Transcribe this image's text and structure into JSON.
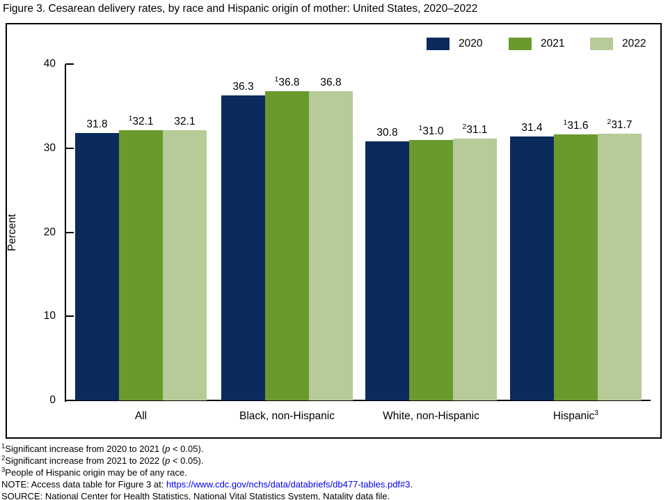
{
  "title": "Figure 3. Cesarean delivery rates, by race and Hispanic origin of mother: United States, 2020–2022",
  "chart_data": {
    "type": "bar",
    "title": "Figure 3. Cesarean delivery rates, by race and Hispanic origin of mother: United States, 2020–2022",
    "xlabel": "",
    "ylabel": "Percent",
    "ylim": [
      0,
      40
    ],
    "yticks": [
      0,
      10,
      20,
      30,
      40
    ],
    "grid": false,
    "legend_position": "top-right",
    "categories": [
      {
        "label": "All",
        "sup": ""
      },
      {
        "label": "Black, non-Hispanic",
        "sup": ""
      },
      {
        "label": "White, non-Hispanic",
        "sup": ""
      },
      {
        "label": "Hispanic",
        "sup": "3"
      }
    ],
    "series": [
      {
        "name": "2020",
        "color": "#0b2b5c",
        "values": [
          31.8,
          36.3,
          30.8,
          31.4
        ],
        "labels": [
          "31.8",
          "36.3",
          "30.8",
          "31.4"
        ],
        "label_sups": [
          "",
          "",
          "",
          ""
        ]
      },
      {
        "name": "2021",
        "color": "#6a9a2e",
        "values": [
          32.1,
          36.8,
          31.0,
          31.6
        ],
        "labels": [
          "32.1",
          "36.8",
          "31.0",
          "31.6"
        ],
        "label_sups": [
          "1",
          "1",
          "1",
          "1"
        ]
      },
      {
        "name": "2022",
        "color": "#b6cb97",
        "values": [
          32.1,
          36.8,
          31.1,
          31.7
        ],
        "labels": [
          "32.1",
          "36.8",
          "31.1",
          "31.7"
        ],
        "label_sups": [
          "",
          "",
          "2",
          "2"
        ]
      }
    ]
  },
  "footnotes": [
    {
      "sup": "1",
      "pre": "Significant increase from 2020 to 2021 (",
      "italic": "p",
      "post": " < 0.05)."
    },
    {
      "sup": "2",
      "pre": "Significant increase from 2021 to 2022 (",
      "italic": "p",
      "post": " < 0.05)."
    },
    {
      "sup": "3",
      "pre": "People of Hispanic origin may be of any race.",
      "italic": "",
      "post": ""
    }
  ],
  "note": {
    "label": "NOTE: Access data table for Figure 3 at: ",
    "link_text": "https://www.cdc.gov/nchs/data/databriefs/db477-tables.pdf#3",
    "after": ".",
    "link_color": "#0000EE"
  },
  "source": "SOURCE: National Center for Health Statistics, National Vital Statistics System, Natality data file."
}
